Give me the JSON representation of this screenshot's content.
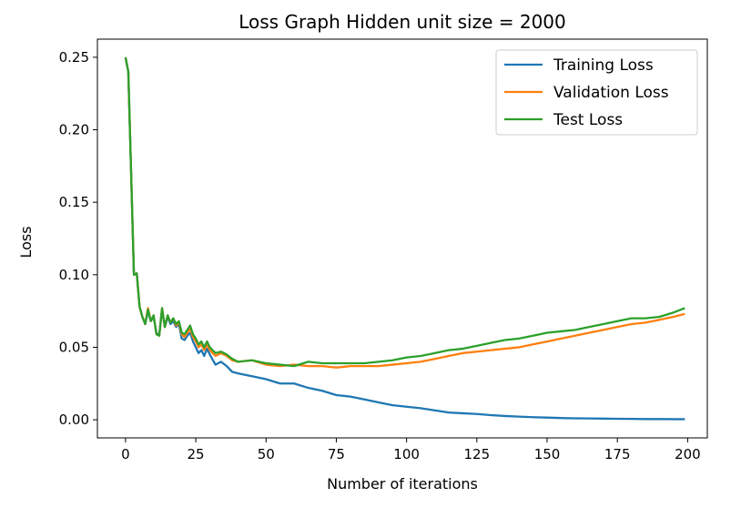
{
  "chart_data": {
    "type": "line",
    "title": "Loss Graph Hidden unit size = 2000",
    "xlabel": "Number of iterations",
    "ylabel": "Loss",
    "xlim": [
      -10,
      207
    ],
    "ylim": [
      -0.0125,
      0.2625
    ],
    "x_ticks": [
      0,
      25,
      50,
      75,
      100,
      125,
      150,
      175,
      200
    ],
    "x_tick_labels": [
      "0",
      "25",
      "50",
      "75",
      "100",
      "125",
      "150",
      "175",
      "200"
    ],
    "y_ticks": [
      0.0,
      0.05,
      0.1,
      0.15,
      0.2,
      0.25
    ],
    "y_tick_labels": [
      "0.00",
      "0.05",
      "0.10",
      "0.15",
      "0.20",
      "0.25"
    ],
    "grid": false,
    "legend_position": "top-right",
    "x": [
      0,
      1,
      2,
      3,
      4,
      5,
      6,
      7,
      8,
      9,
      10,
      11,
      12,
      13,
      14,
      15,
      16,
      17,
      18,
      19,
      20,
      21,
      22,
      23,
      24,
      25,
      26,
      27,
      28,
      29,
      30,
      32,
      34,
      36,
      38,
      40,
      45,
      50,
      55,
      60,
      65,
      70,
      75,
      80,
      85,
      90,
      95,
      100,
      105,
      110,
      115,
      120,
      125,
      130,
      135,
      140,
      145,
      150,
      155,
      160,
      165,
      170,
      175,
      180,
      185,
      190,
      195,
      199
    ],
    "series": [
      {
        "name": "Training Loss",
        "color": "#1f77b4",
        "values": [
          0.25,
          0.24,
          0.17,
          0.1,
          0.101,
          0.078,
          0.071,
          0.066,
          0.075,
          0.068,
          0.071,
          0.06,
          0.058,
          0.076,
          0.064,
          0.071,
          0.066,
          0.068,
          0.064,
          0.066,
          0.056,
          0.055,
          0.058,
          0.06,
          0.054,
          0.05,
          0.046,
          0.048,
          0.044,
          0.049,
          0.045,
          0.038,
          0.04,
          0.037,
          0.033,
          0.032,
          0.03,
          0.028,
          0.025,
          0.025,
          0.022,
          0.02,
          0.017,
          0.016,
          0.014,
          0.012,
          0.01,
          0.009,
          0.008,
          0.0065,
          0.005,
          0.0045,
          0.004,
          0.0032,
          0.0026,
          0.0022,
          0.0018,
          0.0015,
          0.0012,
          0.001,
          0.0009,
          0.0008,
          0.0007,
          0.0006,
          0.0005,
          0.0005,
          0.0004,
          0.0004
        ]
      },
      {
        "name": "Validation Loss",
        "color": "#ff7f0e",
        "values": [
          0.25,
          0.24,
          0.17,
          0.1,
          0.101,
          0.078,
          0.071,
          0.066,
          0.077,
          0.068,
          0.072,
          0.059,
          0.058,
          0.077,
          0.064,
          0.072,
          0.067,
          0.07,
          0.065,
          0.067,
          0.059,
          0.057,
          0.06,
          0.063,
          0.057,
          0.054,
          0.05,
          0.052,
          0.048,
          0.052,
          0.048,
          0.044,
          0.046,
          0.044,
          0.041,
          0.04,
          0.041,
          0.038,
          0.037,
          0.038,
          0.037,
          0.037,
          0.036,
          0.037,
          0.037,
          0.037,
          0.038,
          0.039,
          0.04,
          0.042,
          0.044,
          0.046,
          0.047,
          0.048,
          0.049,
          0.05,
          0.052,
          0.054,
          0.056,
          0.058,
          0.06,
          0.062,
          0.064,
          0.066,
          0.067,
          0.069,
          0.071,
          0.073
        ]
      },
      {
        "name": "Test Loss",
        "color": "#2ca02c",
        "values": [
          0.25,
          0.24,
          0.17,
          0.1,
          0.101,
          0.078,
          0.071,
          0.066,
          0.076,
          0.068,
          0.072,
          0.059,
          0.058,
          0.077,
          0.064,
          0.072,
          0.067,
          0.07,
          0.066,
          0.068,
          0.06,
          0.059,
          0.062,
          0.065,
          0.059,
          0.056,
          0.052,
          0.054,
          0.05,
          0.054,
          0.05,
          0.046,
          0.047,
          0.045,
          0.042,
          0.04,
          0.041,
          0.039,
          0.038,
          0.037,
          0.04,
          0.039,
          0.039,
          0.039,
          0.039,
          0.04,
          0.041,
          0.043,
          0.044,
          0.046,
          0.048,
          0.049,
          0.051,
          0.053,
          0.055,
          0.056,
          0.058,
          0.06,
          0.061,
          0.062,
          0.064,
          0.066,
          0.068,
          0.07,
          0.07,
          0.071,
          0.074,
          0.077
        ]
      }
    ]
  }
}
